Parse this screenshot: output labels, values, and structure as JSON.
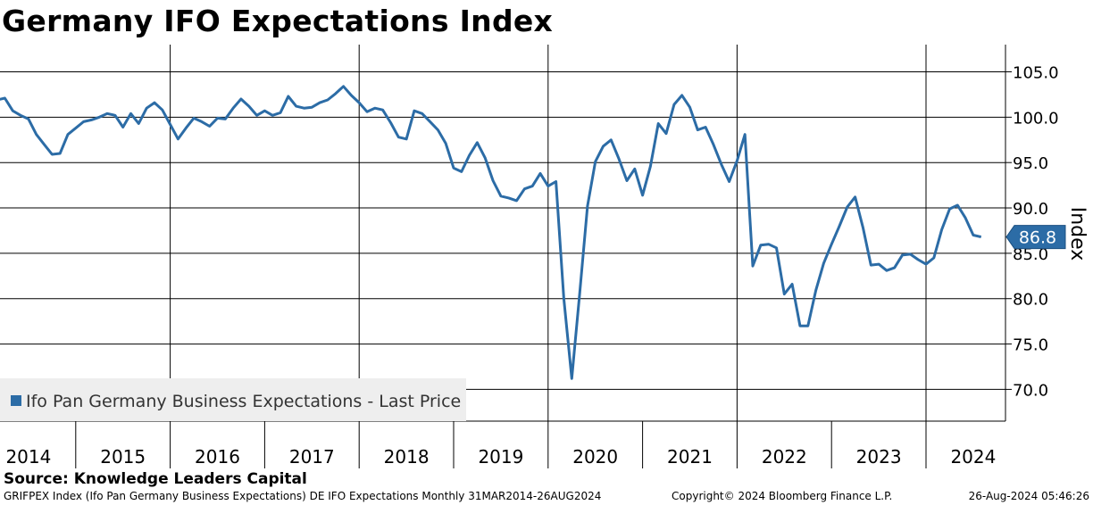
{
  "title": "Germany IFO Expectations Index",
  "source": "Source: Knowledge Leaders Capital",
  "footer": {
    "left": "GRIFPEX Index (Ifo Pan Germany Business Expectations) DE IFO Expectations  Monthly 31MAR2014-26AUG2024",
    "middle": "Copyright© 2024 Bloomberg Finance L.P.",
    "right": "26-Aug-2024 05:46:26"
  },
  "colors": {
    "series": "#2c6ca6",
    "grid": "#000000",
    "legend_bg": "#eeeeee"
  },
  "chart_data": {
    "type": "line",
    "ylabel": "Index",
    "ylim": [
      66.5,
      108
    ],
    "yticks": [
      70.0,
      75.0,
      80.0,
      85.0,
      90.0,
      95.0,
      100.0,
      105.0
    ],
    "ytick_labels": [
      "70.0",
      "75.0",
      "80.0",
      "85.0",
      "90.0",
      "95.0",
      "100.0",
      "105.0"
    ],
    "years": [
      "2014",
      "2015",
      "2016",
      "2017",
      "2018",
      "2019",
      "2020",
      "2021",
      "2022",
      "2023",
      "2024"
    ],
    "grid": true,
    "legend_position": "bottom-left",
    "last_value_label": "86.8",
    "series": [
      {
        "name": "Ifo Pan Germany Business Expectations - Last Price",
        "start": "2014-03",
        "values": [
          101.9,
          102.1,
          100.7,
          100.2,
          99.8,
          98.1,
          97.0,
          95.9,
          96.0,
          98.1,
          98.8,
          99.5,
          99.7,
          100.0,
          100.4,
          100.2,
          98.9,
          100.4,
          99.3,
          101.0,
          101.6,
          100.8,
          99.2,
          97.6,
          98.8,
          99.9,
          99.5,
          99.0,
          99.9,
          99.8,
          101.0,
          102.0,
          101.2,
          100.2,
          100.7,
          100.2,
          100.5,
          102.3,
          101.2,
          101.0,
          101.1,
          101.6,
          101.9,
          102.6,
          103.4,
          102.4,
          101.6,
          100.6,
          101.0,
          100.8,
          99.4,
          97.8,
          97.6,
          100.7,
          100.4,
          99.5,
          98.6,
          97.1,
          94.4,
          94.0,
          95.8,
          97.2,
          95.5,
          93.0,
          91.3,
          91.1,
          90.8,
          92.1,
          92.4,
          93.8,
          92.4,
          92.9,
          80.0,
          71.2,
          80.5,
          90.2,
          95.1,
          96.8,
          97.5,
          95.4,
          93.0,
          94.3,
          91.4,
          94.6,
          99.3,
          98.2,
          101.4,
          102.4,
          101.1,
          98.6,
          98.9,
          97.0,
          94.8,
          92.9,
          95.2,
          98.1,
          83.6,
          85.9,
          86.0,
          85.6,
          80.5,
          81.6,
          77.0,
          77.0,
          80.9,
          83.9,
          86.0,
          88.0,
          90.1,
          91.2,
          87.8,
          83.7,
          83.8,
          83.1,
          83.4,
          84.8,
          84.9,
          84.3,
          83.8,
          84.5,
          87.6,
          89.9,
          90.3,
          88.9,
          87.0,
          86.8
        ]
      }
    ]
  }
}
